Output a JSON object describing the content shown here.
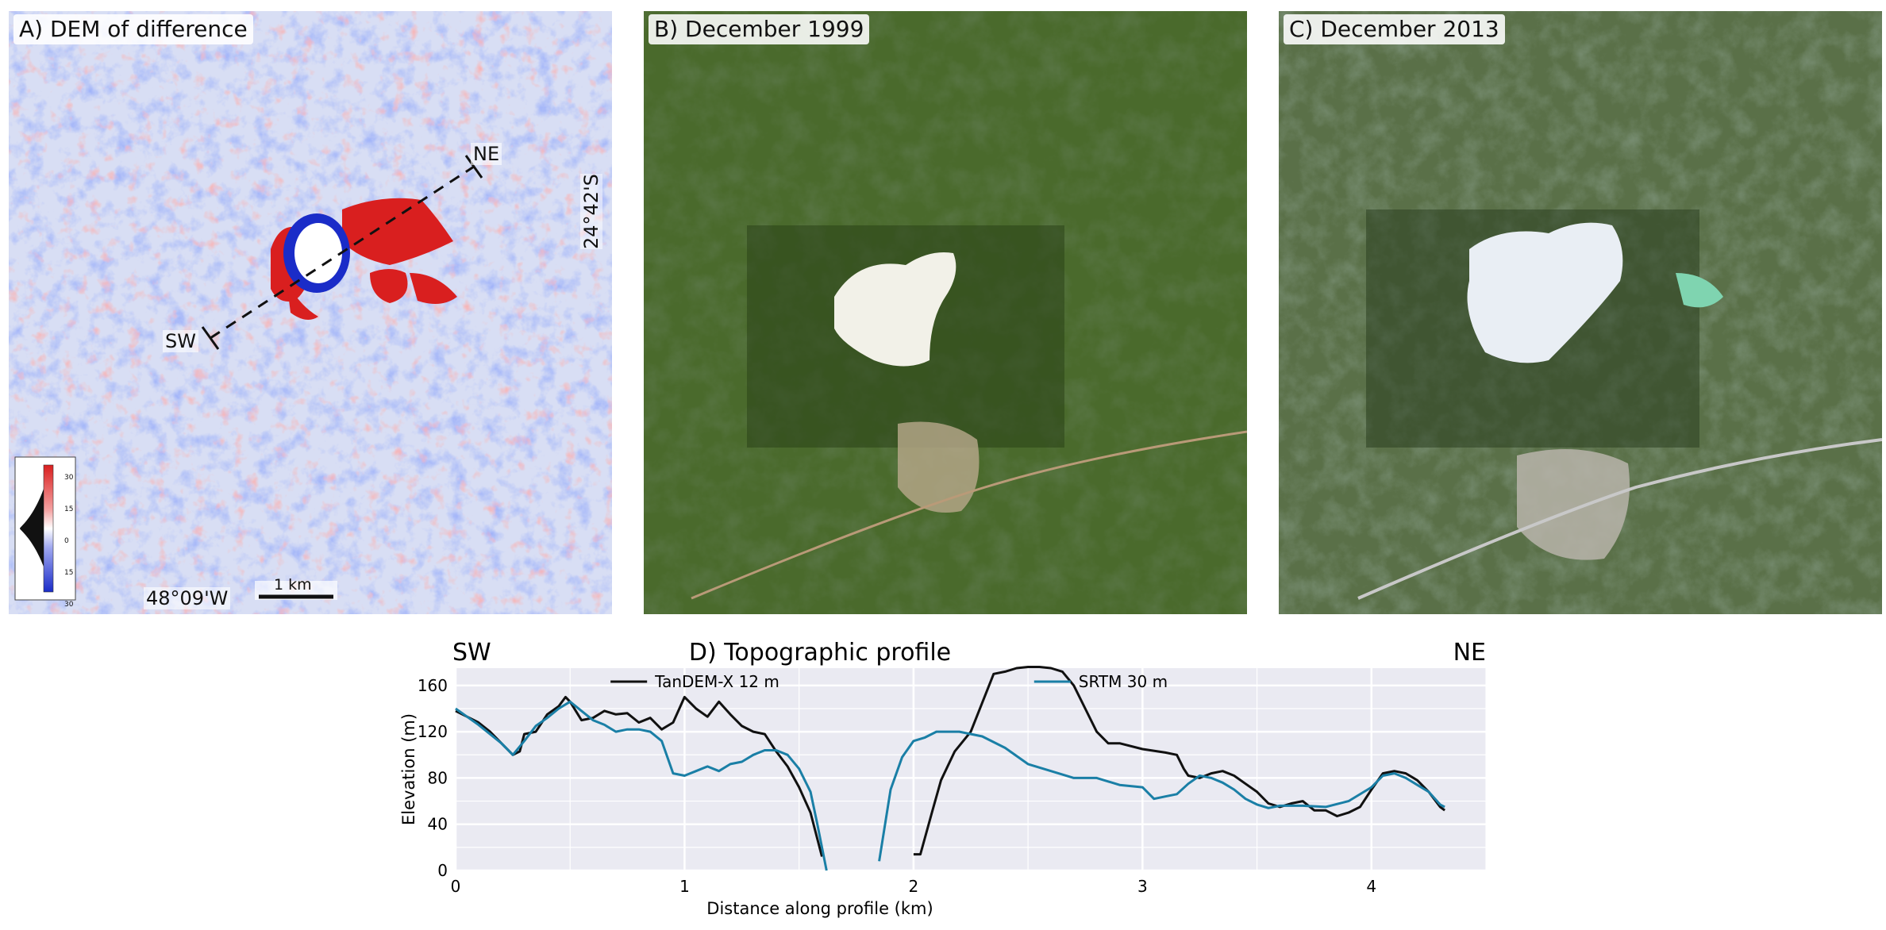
{
  "panels": {
    "a": {
      "title": "A) DEM of difference",
      "lon_label": "48°09'W",
      "lat_label": "24°42'S",
      "scale_label": "1 km",
      "profile_ends": {
        "start": "SW",
        "end": "NE"
      },
      "colorbar_ticks": [
        "30",
        "15",
        "0",
        "15",
        "30"
      ],
      "colors": {
        "positive": "#d91f1f",
        "negative": "#1a2cc8",
        "neutral": "#e8ecf7"
      }
    },
    "b": {
      "title": "B) December 1999"
    },
    "c": {
      "title": "C) December 2013"
    }
  },
  "chart_data": {
    "type": "line",
    "title": "D) Topographic profile",
    "left_end_label": "SW",
    "right_end_label": "NE",
    "xlabel": "Distance along profile (km)",
    "ylabel": "Elevation (m)",
    "xlim": [
      0,
      4.5
    ],
    "ylim": [
      0,
      175
    ],
    "xticks": [
      0,
      1,
      2,
      3,
      4
    ],
    "yticks": [
      0,
      40,
      80,
      120,
      160
    ],
    "grid": true,
    "legend_placement": "top",
    "series": [
      {
        "name": "TanDEM-X 12 m",
        "color": "#111111",
        "segments": [
          [
            [
              0,
              138
            ],
            [
              0.05,
              133
            ],
            [
              0.1,
              128
            ],
            [
              0.15,
              120
            ],
            [
              0.2,
              110
            ],
            [
              0.25,
              100
            ],
            [
              0.28,
              103
            ],
            [
              0.3,
              118
            ],
            [
              0.35,
              120
            ],
            [
              0.4,
              135
            ],
            [
              0.45,
              142
            ],
            [
              0.48,
              150
            ],
            [
              0.5,
              146
            ],
            [
              0.55,
              130
            ],
            [
              0.6,
              132
            ],
            [
              0.65,
              138
            ],
            [
              0.7,
              135
            ],
            [
              0.75,
              136
            ],
            [
              0.8,
              128
            ],
            [
              0.85,
              132
            ],
            [
              0.9,
              122
            ],
            [
              0.95,
              128
            ],
            [
              1.0,
              150
            ],
            [
              1.05,
              140
            ],
            [
              1.1,
              133
            ],
            [
              1.15,
              146
            ],
            [
              1.2,
              135
            ],
            [
              1.25,
              125
            ],
            [
              1.3,
              120
            ],
            [
              1.35,
              118
            ],
            [
              1.4,
              103
            ],
            [
              1.45,
              90
            ],
            [
              1.5,
              72
            ],
            [
              1.55,
              50
            ],
            [
              1.6,
              12
            ]
          ],
          [
            [
              2.0,
              14
            ],
            [
              2.03,
              14
            ],
            [
              2.08,
              50
            ],
            [
              2.12,
              78
            ],
            [
              2.18,
              103
            ],
            [
              2.25,
              120
            ],
            [
              2.3,
              145
            ],
            [
              2.35,
              170
            ],
            [
              2.4,
              172
            ],
            [
              2.45,
              175
            ],
            [
              2.5,
              176
            ],
            [
              2.55,
              176
            ],
            [
              2.6,
              175
            ],
            [
              2.65,
              172
            ],
            [
              2.7,
              160
            ],
            [
              2.75,
              140
            ],
            [
              2.8,
              120
            ],
            [
              2.85,
              110
            ],
            [
              2.9,
              110
            ],
            [
              3.0,
              105
            ],
            [
              3.1,
              102
            ],
            [
              3.15,
              100
            ],
            [
              3.18,
              88
            ],
            [
              3.2,
              82
            ],
            [
              3.25,
              80
            ],
            [
              3.3,
              84
            ],
            [
              3.35,
              86
            ],
            [
              3.4,
              82
            ],
            [
              3.45,
              75
            ],
            [
              3.5,
              68
            ],
            [
              3.55,
              58
            ],
            [
              3.6,
              55
            ],
            [
              3.65,
              58
            ],
            [
              3.7,
              60
            ],
            [
              3.75,
              52
            ],
            [
              3.8,
              52
            ],
            [
              3.85,
              47
            ],
            [
              3.9,
              50
            ],
            [
              3.95,
              55
            ],
            [
              4.0,
              70
            ],
            [
              4.05,
              84
            ],
            [
              4.1,
              86
            ],
            [
              4.15,
              84
            ],
            [
              4.2,
              78
            ],
            [
              4.25,
              68
            ],
            [
              4.3,
              55
            ],
            [
              4.32,
              52
            ]
          ]
        ]
      },
      {
        "name": "SRTM 30 m",
        "color": "#1a7fa6",
        "segments": [
          [
            [
              0,
              140
            ],
            [
              0.05,
              133
            ],
            [
              0.1,
              126
            ],
            [
              0.15,
              118
            ],
            [
              0.2,
              110
            ],
            [
              0.25,
              100
            ],
            [
              0.3,
              112
            ],
            [
              0.35,
              125
            ],
            [
              0.4,
              132
            ],
            [
              0.45,
              140
            ],
            [
              0.5,
              146
            ],
            [
              0.55,
              138
            ],
            [
              0.6,
              130
            ],
            [
              0.65,
              126
            ],
            [
              0.7,
              120
            ],
            [
              0.75,
              122
            ],
            [
              0.8,
              122
            ],
            [
              0.85,
              120
            ],
            [
              0.9,
              112
            ],
            [
              0.95,
              84
            ],
            [
              1.0,
              82
            ],
            [
              1.05,
              86
            ],
            [
              1.1,
              90
            ],
            [
              1.15,
              86
            ],
            [
              1.2,
              92
            ],
            [
              1.25,
              94
            ],
            [
              1.3,
              100
            ],
            [
              1.35,
              104
            ],
            [
              1.4,
              104
            ],
            [
              1.45,
              100
            ],
            [
              1.5,
              88
            ],
            [
              1.55,
              68
            ],
            [
              1.58,
              40
            ],
            [
              1.62,
              0
            ]
          ],
          [
            [
              1.85,
              8
            ],
            [
              1.9,
              70
            ],
            [
              1.95,
              98
            ],
            [
              2.0,
              112
            ],
            [
              2.05,
              115
            ],
            [
              2.1,
              120
            ],
            [
              2.2,
              120
            ],
            [
              2.3,
              116
            ],
            [
              2.4,
              106
            ],
            [
              2.5,
              92
            ],
            [
              2.6,
              86
            ],
            [
              2.7,
              80
            ],
            [
              2.8,
              80
            ],
            [
              2.9,
              74
            ],
            [
              3.0,
              72
            ],
            [
              3.05,
              62
            ],
            [
              3.1,
              64
            ],
            [
              3.15,
              66
            ],
            [
              3.2,
              75
            ],
            [
              3.25,
              82
            ],
            [
              3.3,
              80
            ],
            [
              3.35,
              76
            ],
            [
              3.4,
              70
            ],
            [
              3.45,
              62
            ],
            [
              3.5,
              57
            ],
            [
              3.55,
              54
            ],
            [
              3.6,
              56
            ],
            [
              3.7,
              56
            ],
            [
              3.8,
              55
            ],
            [
              3.9,
              60
            ],
            [
              4.0,
              72
            ],
            [
              4.05,
              82
            ],
            [
              4.1,
              84
            ],
            [
              4.15,
              80
            ],
            [
              4.2,
              74
            ],
            [
              4.25,
              68
            ],
            [
              4.3,
              57
            ],
            [
              4.32,
              55
            ]
          ]
        ]
      }
    ]
  }
}
